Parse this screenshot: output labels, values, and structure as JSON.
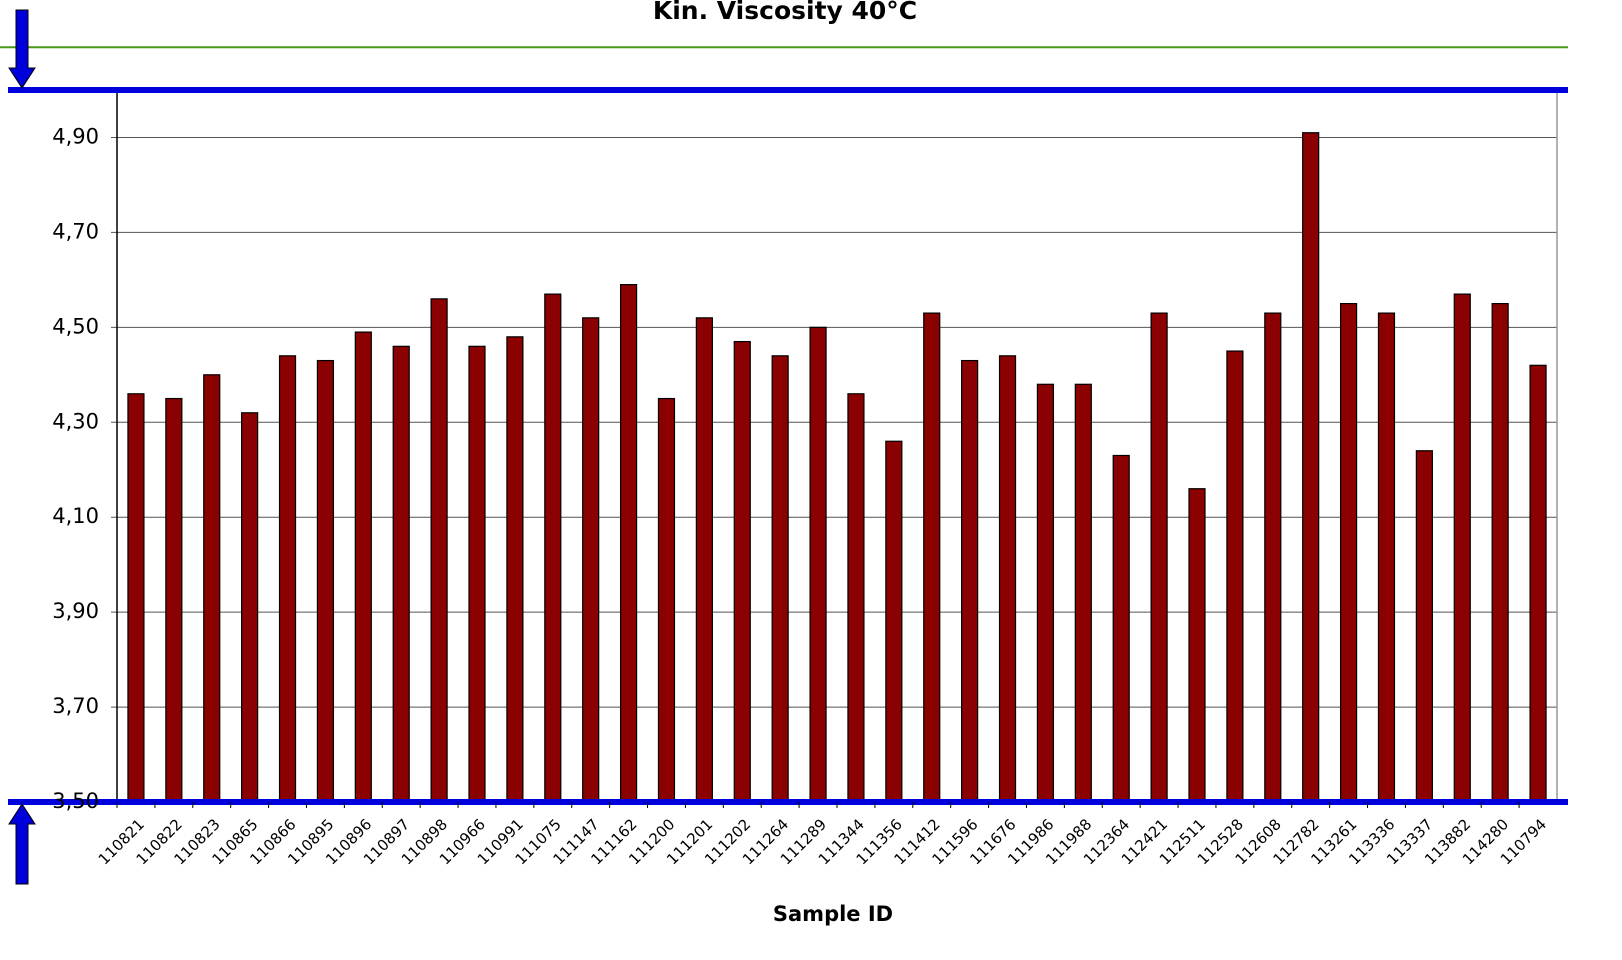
{
  "chart_data": {
    "type": "bar",
    "title": "Kin. Viscosity 40°C",
    "x_label": "Sample ID",
    "categories": [
      "110821",
      "110822",
      "110823",
      "110865",
      "110866",
      "110895",
      "110896",
      "110897",
      "110898",
      "110966",
      "110991",
      "111075",
      "111147",
      "111162",
      "111200",
      "111201",
      "111202",
      "111264",
      "111289",
      "111344",
      "111356",
      "111412",
      "111596",
      "111676",
      "111986",
      "111988",
      "112364",
      "112421",
      "112511",
      "112528",
      "112608",
      "112782",
      "113261",
      "113336",
      "113337",
      "113882",
      "114280",
      "110794"
    ],
    "values": [
      4.36,
      4.35,
      4.4,
      4.32,
      4.44,
      4.43,
      4.49,
      4.46,
      4.56,
      4.46,
      4.48,
      4.57,
      4.52,
      4.59,
      4.35,
      4.52,
      4.47,
      4.44,
      4.5,
      4.36,
      4.26,
      4.53,
      4.43,
      4.44,
      4.38,
      4.38,
      4.23,
      4.53,
      4.16,
      4.45,
      4.53,
      4.91,
      4.55,
      4.53,
      4.24,
      4.57,
      4.55,
      4.42
    ],
    "color": "#8b0000",
    "ylim": [
      3.5,
      5.0
    ],
    "yticks": [
      {
        "value": 3.5,
        "label": "3,50"
      },
      {
        "value": 3.7,
        "label": "3,70"
      },
      {
        "value": 3.9,
        "label": "3,90"
      },
      {
        "value": 4.1,
        "label": "4,10"
      },
      {
        "value": 4.3,
        "label": "4,30"
      },
      {
        "value": 4.5,
        "label": "4,50"
      },
      {
        "value": 4.7,
        "label": "4,70"
      },
      {
        "value": 4.9,
        "label": "4,90"
      }
    ],
    "grid": true,
    "reference_lines": [
      {
        "value": 5.0,
        "color": "#0000dd"
      },
      {
        "value": 3.5,
        "color": "#0000dd"
      },
      {
        "value": 5.09,
        "color": "#4a9a1a"
      }
    ]
  }
}
